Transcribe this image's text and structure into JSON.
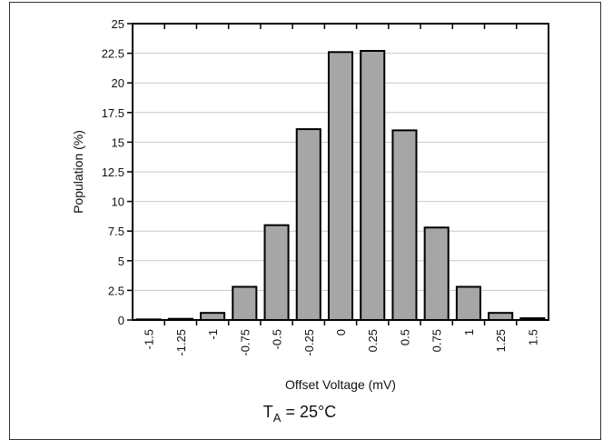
{
  "chart_data": {
    "type": "bar",
    "title": "",
    "xlabel": "Offset Voltage (mV)",
    "ylabel": "Population (%)",
    "condition": {
      "label": "T",
      "sub": "A",
      "value": " = 25°C"
    },
    "categories": [
      "-1.5",
      "-1.25",
      "-1",
      "-0.75",
      "-0.5",
      "-0.25",
      "0",
      "0.25",
      "0.5",
      "0.75",
      "1",
      "1.25",
      "1.5"
    ],
    "values": [
      0.05,
      0.1,
      0.6,
      2.8,
      8.0,
      16.1,
      22.6,
      22.7,
      16.0,
      7.8,
      2.8,
      0.6,
      0.15
    ],
    "ylim": [
      0,
      25
    ],
    "yticks": [
      "0",
      "2.5",
      "5",
      "7.5",
      "10",
      "12.5",
      "15",
      "17.5",
      "20",
      "22.5",
      "25"
    ],
    "grid": true,
    "bar_color": "#a6a6a6"
  }
}
